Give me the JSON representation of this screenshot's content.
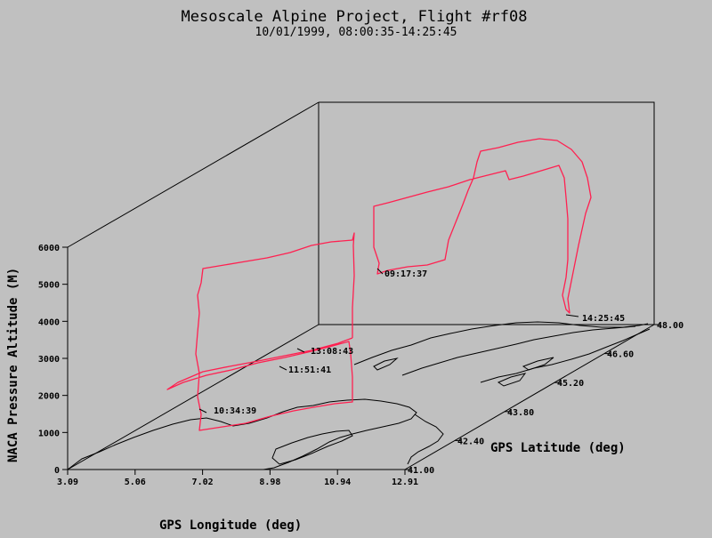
{
  "chart_data": {
    "type": "line",
    "projection": "3d-perspective",
    "title": "Mesoscale Alpine Project, Flight #rf08",
    "subtitle": "10/01/1999, 08:00:35-14:25:45",
    "xlabel": "GPS Longitude (deg)",
    "ylabel": "GPS Latitude (deg)",
    "zlabel": "NACA Pressure Altitude (M)",
    "x_ticks": [
      "3.09",
      "5.06",
      "7.02",
      "8.98",
      "10.94",
      "12.91"
    ],
    "y_ticks": [
      "41.00",
      "42.40",
      "43.80",
      "45.20",
      "46.60",
      "48.00"
    ],
    "z_ticks": [
      "0",
      "1000",
      "2000",
      "3000",
      "4000",
      "5000",
      "6000"
    ],
    "xlim": [
      3.09,
      12.91
    ],
    "ylim": [
      41.0,
      48.0
    ],
    "zlim": [
      0,
      6000
    ],
    "series": [
      {
        "color": "#ff2050",
        "points": [
          {
            "lon": 12.2,
            "lat": 47.6,
            "alt": 200
          },
          {
            "lon": 12.1,
            "lat": 47.7,
            "alt": 1600
          },
          {
            "lon": 12.0,
            "lat": 47.8,
            "alt": 3400
          },
          {
            "lon": 11.9,
            "lat": 47.9,
            "alt": 5300
          },
          {
            "lon": 11.6,
            "lat": 47.9,
            "alt": 5800
          },
          {
            "lon": 9.5,
            "lat": 47.9,
            "alt": 5850
          },
          {
            "lon": 9.0,
            "lat": 47.85,
            "alt": 5800
          },
          {
            "lon": 8.9,
            "lat": 47.3,
            "alt": 5600
          },
          {
            "lon": 8.7,
            "lat": 47.0,
            "alt": 5450
          },
          {
            "lon": 7.5,
            "lat": 47.0,
            "alt": 5300
          },
          {
            "lon": 7.1,
            "lat": 47.4,
            "alt": 5150
          },
          {
            "lon": 6.9,
            "lat": 47.5,
            "alt": 5050
          },
          {
            "lon": 7.0,
            "lat": 47.5,
            "alt": 100
          },
          {
            "lon": 7.3,
            "lat": 47.4,
            "alt": 2300
          },
          {
            "lon": 8.5,
            "lat": 47.3,
            "alt": 4050
          },
          {
            "lon": 9.8,
            "lat": 47.2,
            "alt": 5200
          },
          {
            "lon": 11.3,
            "lat": 47.8,
            "alt": 5450
          },
          {
            "lon": 11.2,
            "lat": 47.8,
            "alt": 5300
          },
          {
            "lon": 8.9,
            "lat": 47.9,
            "alt": 5150
          },
          {
            "lon": 8.7,
            "lat": 47.5,
            "alt": 4950
          },
          {
            "lon": 8.6,
            "lat": 47.3,
            "alt": 4750
          },
          {
            "lon": 7.8,
            "lat": 46.5,
            "alt": 4550
          },
          {
            "lon": 7.0,
            "lat": 46.2,
            "alt": 4400
          },
          {
            "lon": 6.2,
            "lat": 45.8,
            "alt": 4150
          },
          {
            "lon": 6.0,
            "lat": 45.7,
            "alt": 2800
          },
          {
            "lon": 6.1,
            "lat": 45.5,
            "alt": 900
          },
          {
            "lon": 6.3,
            "lat": 45.3,
            "alt": 600
          },
          {
            "lon": 8.5,
            "lat": 44.7,
            "alt": 1150
          },
          {
            "lon": 9.6,
            "lat": 44.8,
            "alt": 1300
          },
          {
            "lon": 10.9,
            "lat": 45.0,
            "alt": 1800
          },
          {
            "lon": 11.0,
            "lat": 45.2,
            "alt": 2500
          },
          {
            "lon": 10.6,
            "lat": 45.3,
            "alt": 3200
          },
          {
            "lon": 8.2,
            "lat": 45.2,
            "alt": 3000
          },
          {
            "lon": 5.8,
            "lat": 45.0,
            "alt": 2150
          },
          {
            "lon": 5.6,
            "lat": 44.9,
            "alt": 2000
          }
        ]
      }
    ],
    "annotations": [
      "09:17:37",
      "10:34:39",
      "11:51:41",
      "13:08:43",
      "14:25:45"
    ]
  }
}
